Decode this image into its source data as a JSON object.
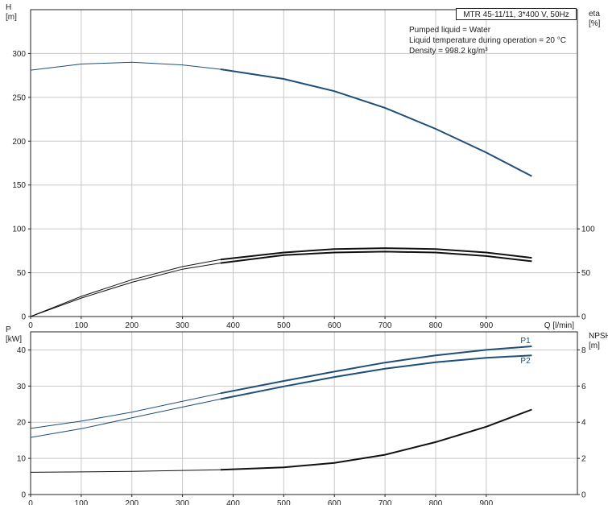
{
  "pump_label": "MTR 45-11/11, 3*400 V, 50Hz",
  "conditions": [
    "Pumped liquid = Water",
    "Liquid temperature during operation = 20 °C",
    "Density = 998.2 kg/m³"
  ],
  "colors": {
    "blue": "#1f4e79",
    "black": "#111111",
    "grid": "#c8c8c8"
  },
  "chart_data": [
    {
      "type": "line",
      "title": "",
      "ylabel_left": "H\n[m]",
      "ylabel_right": "eta\n[%]",
      "xlabel": "Q [l/min]",
      "xlim": [
        0,
        1080
      ],
      "ylim": [
        0,
        350
      ],
      "y2lim": [
        0,
        350
      ],
      "x_ticks": [
        0,
        100,
        200,
        300,
        400,
        500,
        600,
        700,
        800,
        900
      ],
      "y_ticks": [
        0,
        50,
        100,
        150,
        200,
        250,
        300
      ],
      "y2_ticks": [
        0,
        50,
        100
      ],
      "grid": true,
      "series": [
        {
          "name": "",
          "axis": "left",
          "color": "#1f4e79",
          "x": [
            0,
            100,
            200,
            300,
            375,
            500,
            600,
            700,
            800,
            900,
            990
          ],
          "y": [
            281,
            288,
            290,
            287,
            282,
            271,
            257,
            238,
            214,
            187,
            160
          ]
        },
        {
          "name": "",
          "axis": "right",
          "color": "#111111",
          "x": [
            0,
            100,
            200,
            300,
            375,
            500,
            600,
            700,
            800,
            900,
            990
          ],
          "y": [
            0,
            23,
            42,
            57,
            65,
            73,
            77,
            78,
            77,
            73,
            67
          ]
        },
        {
          "name": "",
          "axis": "right",
          "color": "#111111",
          "x": [
            0,
            100,
            200,
            300,
            375,
            500,
            600,
            700,
            800,
            900,
            990
          ],
          "y": [
            0,
            21,
            39,
            54,
            61,
            70,
            73,
            74,
            73,
            69,
            63
          ]
        }
      ]
    },
    {
      "type": "line",
      "title": "",
      "ylabel_left": "P\n[kW]",
      "ylabel_right": "NPSH\n[m]",
      "xlabel": "",
      "xlim": [
        0,
        1080
      ],
      "ylim": [
        0,
        45
      ],
      "y2lim": [
        0,
        9
      ],
      "x_ticks": [
        0,
        100,
        200,
        300,
        400,
        500,
        600,
        700,
        800,
        900
      ],
      "y_ticks": [
        0,
        10,
        20,
        30,
        40
      ],
      "y2_ticks": [
        0,
        2,
        4,
        6,
        8
      ],
      "grid": true,
      "series": [
        {
          "name": "P1",
          "axis": "left",
          "color": "#1f4e79",
          "x": [
            0,
            100,
            200,
            300,
            375,
            500,
            600,
            700,
            800,
            900,
            990
          ],
          "y": [
            18.3,
            20.3,
            22.8,
            25.8,
            28.0,
            31.4,
            34.0,
            36.5,
            38.5,
            40.0,
            41.0
          ]
        },
        {
          "name": "P2",
          "axis": "left",
          "color": "#1f4e79",
          "x": [
            0,
            100,
            200,
            300,
            375,
            500,
            600,
            700,
            800,
            900,
            990
          ],
          "y": [
            15.8,
            18.2,
            21.2,
            24.2,
            26.4,
            29.9,
            32.5,
            34.8,
            36.6,
            37.8,
            38.5
          ]
        },
        {
          "name": "",
          "axis": "right",
          "color": "#111111",
          "x": [
            0,
            100,
            200,
            300,
            375,
            500,
            600,
            700,
            800,
            900,
            990
          ],
          "y": [
            1.23,
            1.25,
            1.28,
            1.33,
            1.37,
            1.5,
            1.75,
            2.2,
            2.9,
            3.75,
            4.7
          ]
        }
      ]
    }
  ]
}
